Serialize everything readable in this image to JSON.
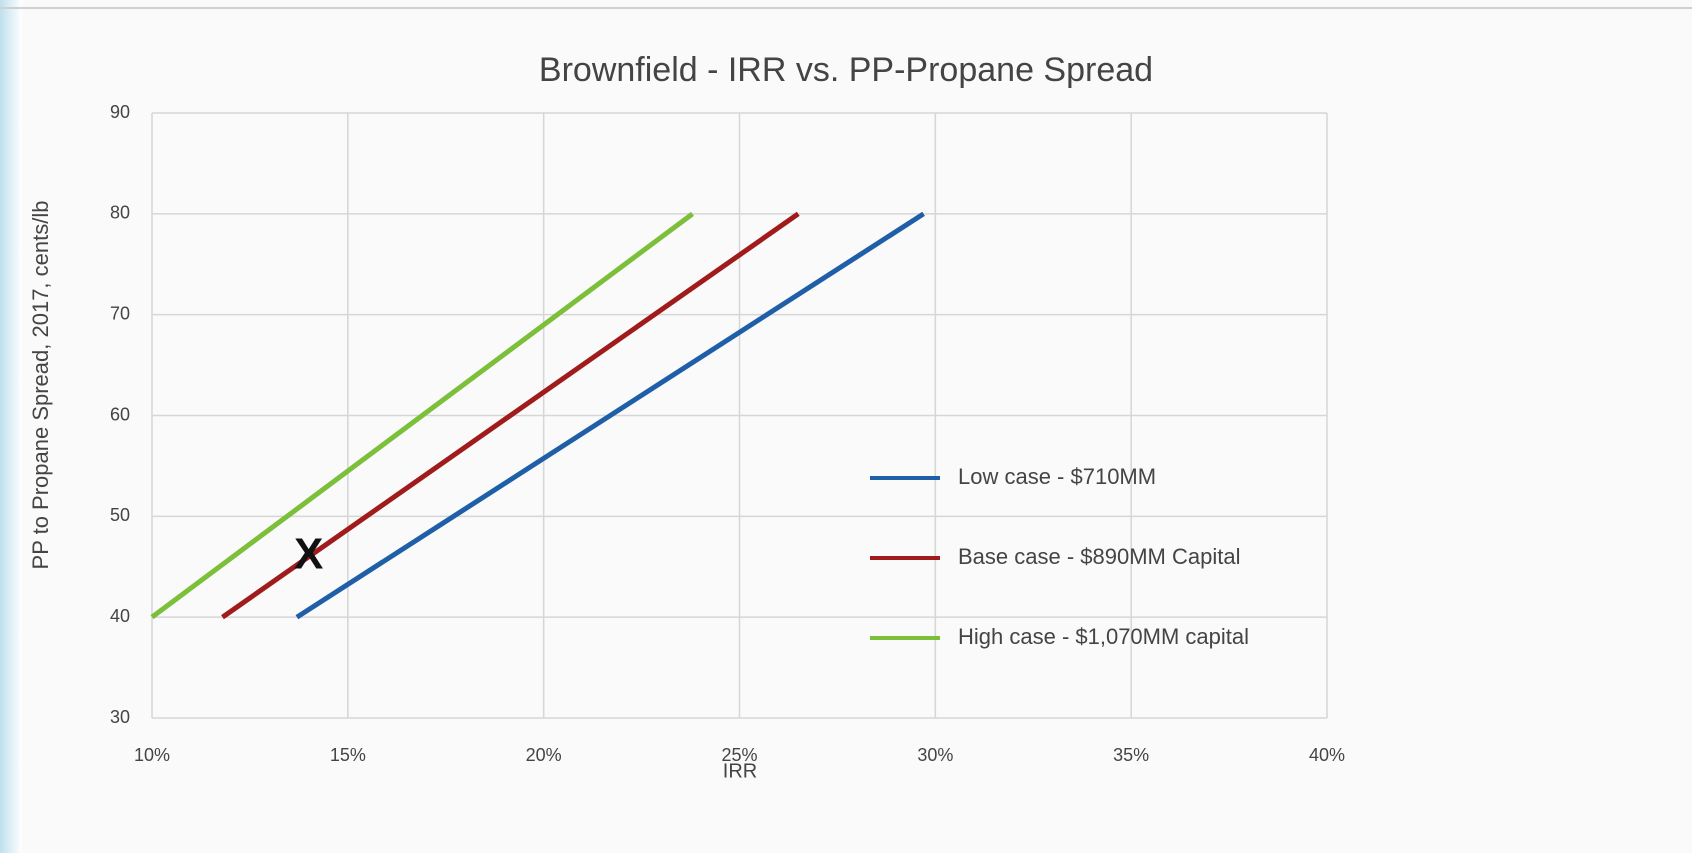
{
  "chart_data": {
    "type": "line",
    "title": "Brownfield - IRR vs. PP-Propane Spread",
    "x_label": "IRR",
    "y_label": "PP to Propane Spread, 2017, cents/lb",
    "series": [
      {
        "name": "Low case - $710MM",
        "color": "#1f5fa8",
        "x": [
          13.7,
          29.7
        ],
        "values": [
          40,
          80
        ]
      },
      {
        "name": "Base case - $890MM Capital",
        "color": "#a01c1c",
        "x": [
          11.8,
          26.5
        ],
        "values": [
          40,
          80
        ]
      },
      {
        "name": "High case - $1,070MM capital",
        "color": "#7cbf3a",
        "x": [
          10,
          23.8
        ],
        "values": [
          40,
          80
        ]
      }
    ],
    "annotations": [
      {
        "text": "X",
        "x": 14,
        "y": 46
      }
    ],
    "xlim": [
      10,
      40
    ],
    "xticks": [
      {
        "value": 10,
        "label": "10%"
      },
      {
        "value": 15,
        "label": "15%"
      },
      {
        "value": 20,
        "label": "20%"
      },
      {
        "value": 25,
        "label": "25%"
      },
      {
        "value": 30,
        "label": "30%"
      },
      {
        "value": 35,
        "label": "35%"
      },
      {
        "value": 40,
        "label": "40%"
      }
    ],
    "ylim": [
      30,
      90
    ],
    "yticks": [
      30,
      40,
      50,
      60,
      70,
      80,
      90
    ],
    "grid": true,
    "legend": "right"
  }
}
